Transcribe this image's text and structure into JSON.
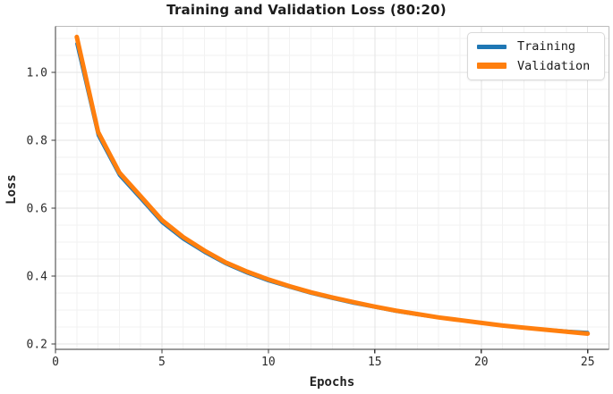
{
  "title": "Training and Validation Loss (80:20)",
  "chart_data": {
    "type": "line",
    "title": "Training and Validation Loss (80:20)",
    "xlabel": "Epochs",
    "ylabel": "Loss",
    "x": [
      1,
      2,
      3,
      4,
      5,
      6,
      7,
      8,
      9,
      10,
      11,
      12,
      13,
      14,
      15,
      16,
      17,
      18,
      19,
      20,
      21,
      22,
      23,
      24,
      25
    ],
    "series": [
      {
        "name": "Training",
        "color": "#1f77b4",
        "line_width": 3.5,
        "values": [
          1.085,
          0.815,
          0.697,
          0.628,
          0.558,
          0.509,
          0.47,
          0.436,
          0.409,
          0.386,
          0.367,
          0.349,
          0.334,
          0.32,
          0.308,
          0.296,
          0.286,
          0.277,
          0.269,
          0.261,
          0.254,
          0.248,
          0.243,
          0.238,
          0.234
        ]
      },
      {
        "name": "Validation",
        "color": "#ff7f0e",
        "line_width": 5,
        "values": [
          1.105,
          0.825,
          0.705,
          0.635,
          0.565,
          0.515,
          0.475,
          0.44,
          0.413,
          0.39,
          0.37,
          0.352,
          0.337,
          0.323,
          0.31,
          0.298,
          0.288,
          0.278,
          0.27,
          0.262,
          0.254,
          0.248,
          0.242,
          0.236,
          0.23
        ]
      }
    ],
    "xlim": [
      0,
      26
    ],
    "ylim": [
      0.184,
      1.136
    ],
    "x_ticks": [
      0,
      5,
      10,
      15,
      20,
      25
    ],
    "x_tick_labels": [
      "0",
      "5",
      "10",
      "15",
      "20",
      "25"
    ],
    "y_ticks": [
      0.2,
      0.4,
      0.6,
      0.8,
      1.0
    ],
    "y_tick_labels": [
      "0.2",
      "0.4",
      "0.6",
      "0.8",
      "1.0"
    ],
    "x_minor_step": 1,
    "y_minor_step": 0.05,
    "grid": "on",
    "legend_position": "upper right"
  },
  "legend": {
    "items": [
      {
        "label": "Training",
        "color": "#1f77b4"
      },
      {
        "label": "Validation",
        "color": "#ff7f0e"
      }
    ]
  },
  "colors": {
    "training": "#1f77b4",
    "validation": "#ff7f0e",
    "spine_dark": "#3a3a3a",
    "spine_light": "#bcbcbc",
    "grid_major": "#e3e3e3",
    "grid_minor": "#f2f2f2",
    "tick_label": "#2b2b2b"
  }
}
